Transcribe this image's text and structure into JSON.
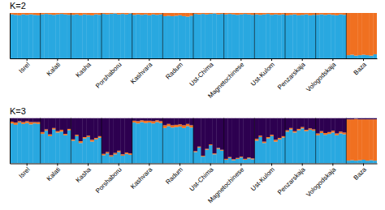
{
  "chart_data": [
    {
      "type": "bar",
      "title": "K=2",
      "stacked": true,
      "ylim": [
        0,
        1
      ],
      "tick_labels": "x",
      "categories": [
        null,
        null,
        null,
        null,
        "Isrel",
        null,
        null,
        null,
        null,
        null,
        null,
        null,
        "Kalati",
        null,
        null,
        null,
        null,
        null,
        null,
        null,
        "Kasha",
        null,
        null,
        null,
        null,
        null,
        null,
        null,
        "Porshaboru",
        null,
        null,
        null,
        null,
        null,
        null,
        null,
        "Kashvara",
        null,
        null,
        null,
        null,
        null,
        null,
        null,
        "Radum",
        null,
        null,
        null,
        null,
        null,
        null,
        null,
        "Ust-Chima",
        null,
        null,
        null,
        null,
        null,
        null,
        null,
        "Magnetochinese",
        null,
        null,
        null,
        null,
        null,
        null,
        null,
        "Ust-Kulom",
        null,
        null,
        null,
        null,
        null,
        null,
        null,
        "Penzarskaja",
        null,
        null,
        null,
        null,
        null,
        null,
        null,
        "Vologodskaja",
        null,
        null,
        null,
        null,
        null,
        null,
        null,
        "Baza",
        null,
        null,
        null
      ],
      "series": [
        {
          "color": "#29A8E0",
          "values": [
            0.97,
            0.96,
            0.95,
            0.97,
            0.96,
            0.97,
            0.96,
            0.95,
            0.97,
            0.98,
            0.97,
            0.96,
            0.97,
            0.98,
            0.97,
            0.96,
            0.96,
            0.97,
            0.95,
            0.97,
            0.96,
            0.95,
            0.97,
            0.96,
            0.98,
            0.97,
            0.98,
            0.99,
            0.97,
            0.98,
            0.97,
            0.99,
            0.96,
            0.97,
            0.96,
            0.97,
            0.95,
            0.97,
            0.96,
            0.97,
            0.93,
            0.94,
            0.93,
            0.94,
            0.95,
            0.93,
            0.92,
            0.94,
            0.98,
            0.97,
            0.98,
            0.97,
            0.98,
            0.99,
            0.97,
            0.98,
            0.97,
            0.98,
            0.97,
            0.96,
            0.97,
            0.98,
            0.97,
            0.96,
            0.97,
            0.96,
            0.97,
            0.98,
            0.96,
            0.97,
            0.96,
            0.97,
            0.95,
            0.96,
            0.97,
            0.95,
            0.96,
            0.97,
            0.95,
            0.96,
            0.96,
            0.97,
            0.96,
            0.97,
            0.96,
            0.95,
            0.97,
            0.96,
            0.07,
            0.08,
            0.06,
            0.07,
            0.08,
            0.07,
            0.06,
            0.09
          ]
        },
        {
          "color": "#F07020",
          "values": [
            0.03,
            0.04,
            0.05,
            0.03,
            0.04,
            0.03,
            0.04,
            0.05,
            0.03,
            0.02,
            0.03,
            0.04,
            0.03,
            0.02,
            0.03,
            0.04,
            0.04,
            0.03,
            0.05,
            0.03,
            0.04,
            0.05,
            0.03,
            0.04,
            0.02,
            0.03,
            0.02,
            0.01,
            0.03,
            0.02,
            0.03,
            0.01,
            0.04,
            0.03,
            0.04,
            0.03,
            0.05,
            0.03,
            0.04,
            0.03,
            0.07,
            0.06,
            0.07,
            0.06,
            0.05,
            0.07,
            0.08,
            0.06,
            0.02,
            0.03,
            0.02,
            0.03,
            0.02,
            0.01,
            0.03,
            0.02,
            0.03,
            0.02,
            0.03,
            0.04,
            0.03,
            0.02,
            0.03,
            0.04,
            0.03,
            0.04,
            0.03,
            0.02,
            0.04,
            0.03,
            0.04,
            0.03,
            0.05,
            0.04,
            0.03,
            0.05,
            0.04,
            0.03,
            0.05,
            0.04,
            0.04,
            0.03,
            0.04,
            0.03,
            0.04,
            0.05,
            0.03,
            0.04,
            0.93,
            0.92,
            0.94,
            0.93,
            0.92,
            0.93,
            0.94,
            0.91
          ]
        }
      ]
    },
    {
      "type": "bar",
      "title": "K=3",
      "stacked": true,
      "ylim": [
        0,
        1
      ],
      "tick_labels": "x",
      "categories": [
        null,
        null,
        null,
        null,
        "Isrel",
        null,
        null,
        null,
        null,
        null,
        null,
        null,
        "Kalati",
        null,
        null,
        null,
        null,
        null,
        null,
        null,
        "Kasha",
        null,
        null,
        null,
        null,
        null,
        null,
        null,
        "Porshaboru",
        null,
        null,
        null,
        null,
        null,
        null,
        null,
        "Kashvara",
        null,
        null,
        null,
        null,
        null,
        null,
        null,
        "Radum",
        null,
        null,
        null,
        null,
        null,
        null,
        null,
        "Ust-Chima",
        null,
        null,
        null,
        null,
        null,
        null,
        null,
        "Magnetochinese",
        null,
        null,
        null,
        null,
        null,
        null,
        null,
        "Ust-Kulom",
        null,
        null,
        null,
        null,
        null,
        null,
        null,
        "Penzarskaja",
        null,
        null,
        null,
        null,
        null,
        null,
        null,
        "Vologodskaja",
        null,
        null,
        null,
        null,
        null,
        null,
        null,
        "Baza",
        null,
        null,
        null
      ],
      "series": [
        {
          "color": "#29A8E0",
          "values": [
            0.88,
            0.85,
            0.9,
            0.87,
            0.89,
            0.86,
            0.88,
            0.87,
            0.65,
            0.72,
            0.6,
            0.75,
            0.68,
            0.7,
            0.62,
            0.73,
            0.5,
            0.6,
            0.45,
            0.55,
            0.58,
            0.48,
            0.53,
            0.57,
            0.18,
            0.22,
            0.15,
            0.2,
            0.25,
            0.17,
            0.21,
            0.19,
            0.9,
            0.88,
            0.91,
            0.89,
            0.9,
            0.88,
            0.91,
            0.89,
            0.78,
            0.82,
            0.79,
            0.8,
            0.81,
            0.78,
            0.82,
            0.79,
            0.25,
            0.35,
            0.15,
            0.3,
            0.4,
            0.2,
            0.32,
            0.28,
            0.08,
            0.12,
            0.07,
            0.1,
            0.13,
            0.08,
            0.11,
            0.09,
            0.5,
            0.58,
            0.45,
            0.55,
            0.6,
            0.48,
            0.53,
            0.57,
            0.7,
            0.75,
            0.68,
            0.73,
            0.77,
            0.71,
            0.74,
            0.72,
            0.62,
            0.67,
            0.63,
            0.65,
            0.68,
            0.62,
            0.66,
            0.64,
            0.06,
            0.07,
            0.06,
            0.07,
            0.08,
            0.06,
            0.07,
            0.06
          ]
        },
        {
          "color": "#F07020",
          "values": [
            0.04,
            0.05,
            0.03,
            0.04,
            0.04,
            0.05,
            0.03,
            0.04,
            0.04,
            0.03,
            0.04,
            0.03,
            0.03,
            0.04,
            0.03,
            0.03,
            0.03,
            0.03,
            0.04,
            0.03,
            0.03,
            0.04,
            0.03,
            0.03,
            0.03,
            0.03,
            0.03,
            0.03,
            0.03,
            0.03,
            0.03,
            0.03,
            0.04,
            0.05,
            0.04,
            0.05,
            0.04,
            0.05,
            0.04,
            0.04,
            0.06,
            0.05,
            0.05,
            0.05,
            0.05,
            0.06,
            0.05,
            0.05,
            0.02,
            0.02,
            0.02,
            0.02,
            0.02,
            0.02,
            0.02,
            0.02,
            0.02,
            0.02,
            0.02,
            0.02,
            0.02,
            0.02,
            0.02,
            0.02,
            0.04,
            0.03,
            0.03,
            0.03,
            0.03,
            0.04,
            0.03,
            0.03,
            0.03,
            0.03,
            0.03,
            0.03,
            0.03,
            0.03,
            0.03,
            0.03,
            0.04,
            0.04,
            0.04,
            0.04,
            0.04,
            0.04,
            0.04,
            0.04,
            0.91,
            0.9,
            0.92,
            0.9,
            0.89,
            0.91,
            0.9,
            0.91
          ]
        },
        {
          "color": "#2D0050",
          "values": [
            0.08,
            0.1,
            0.07,
            0.09,
            0.07,
            0.09,
            0.09,
            0.09,
            0.31,
            0.25,
            0.36,
            0.22,
            0.29,
            0.26,
            0.35,
            0.24,
            0.47,
            0.37,
            0.51,
            0.42,
            0.39,
            0.48,
            0.44,
            0.4,
            0.79,
            0.75,
            0.82,
            0.77,
            0.72,
            0.8,
            0.76,
            0.78,
            0.06,
            0.07,
            0.05,
            0.06,
            0.06,
            0.07,
            0.05,
            0.07,
            0.16,
            0.13,
            0.16,
            0.15,
            0.14,
            0.16,
            0.13,
            0.16,
            0.73,
            0.63,
            0.83,
            0.68,
            0.58,
            0.78,
            0.66,
            0.7,
            0.9,
            0.86,
            0.91,
            0.88,
            0.85,
            0.9,
            0.87,
            0.89,
            0.46,
            0.39,
            0.52,
            0.42,
            0.37,
            0.48,
            0.44,
            0.4,
            0.27,
            0.22,
            0.29,
            0.24,
            0.2,
            0.26,
            0.23,
            0.25,
            0.34,
            0.29,
            0.33,
            0.31,
            0.28,
            0.34,
            0.3,
            0.32,
            0.03,
            0.03,
            0.02,
            0.03,
            0.03,
            0.03,
            0.03,
            0.03
          ]
        }
      ]
    }
  ]
}
